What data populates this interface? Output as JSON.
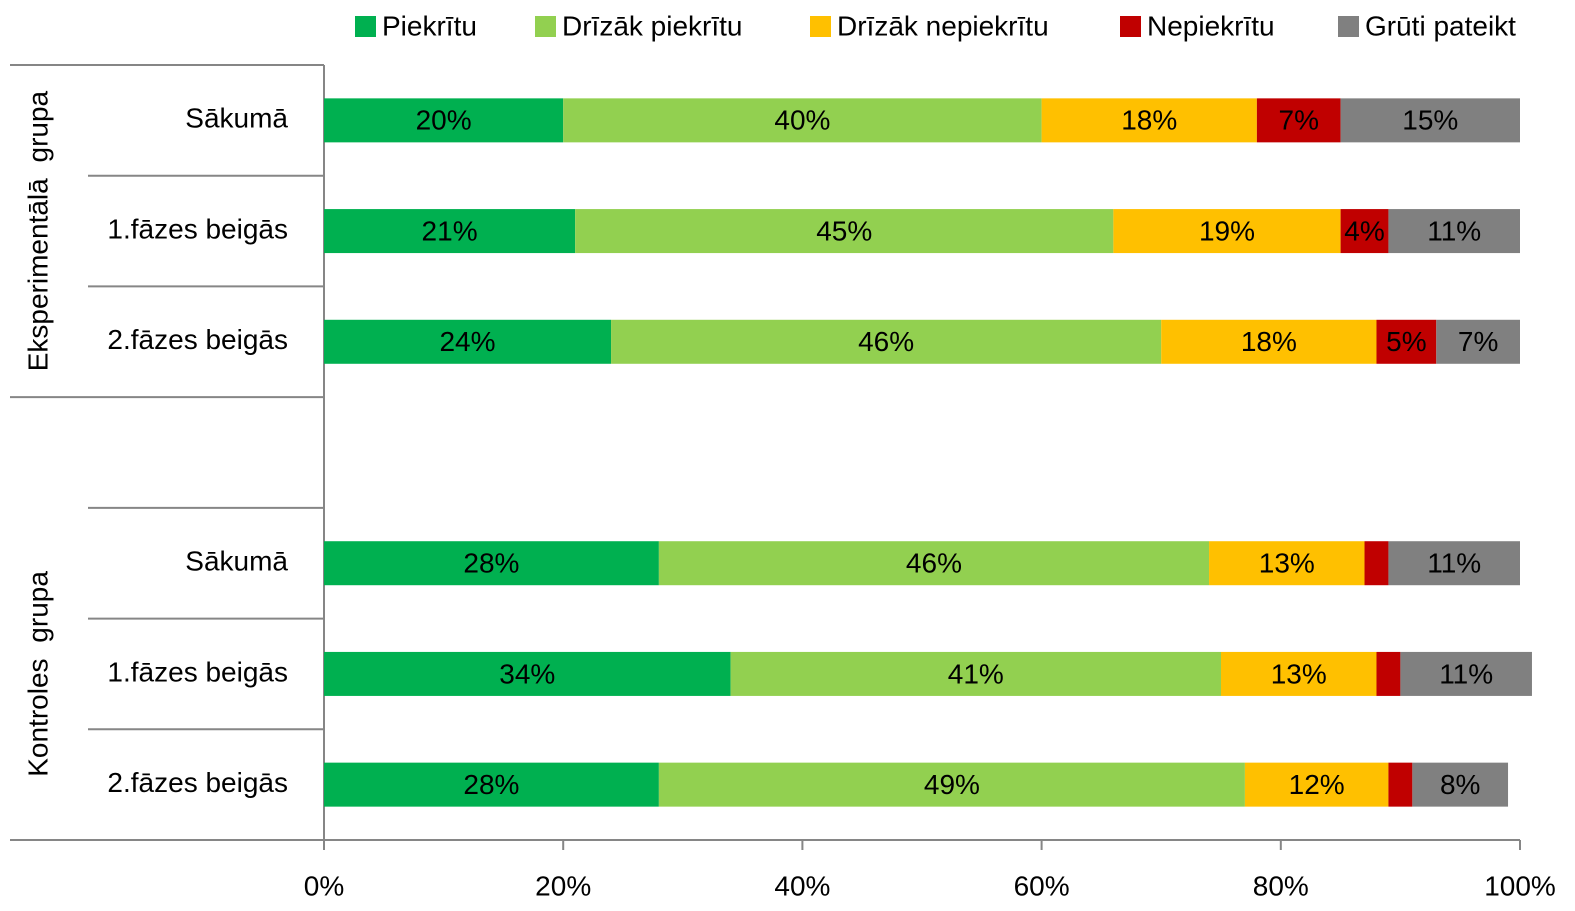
{
  "chart_data": {
    "type": "bar",
    "orientation": "horizontal",
    "stacked": true,
    "group_labels": [
      "Eksperimentālā grupa",
      "Kontroles grupa"
    ],
    "categories": [
      "Sākumā",
      "1.fāzes beigās",
      "2.fāzes beigās",
      null,
      "Sākumā",
      "1.fāzes beigās",
      "2.fāzes beigās"
    ],
    "series": [
      {
        "name": "Piekrītu",
        "color": "#00b050",
        "label_color": "#ffffff",
        "values": [
          20,
          21,
          24,
          null,
          28,
          34,
          28
        ],
        "value_labels": [
          "20%",
          "21%",
          "24%",
          null,
          "28%",
          "34%",
          "28%"
        ]
      },
      {
        "name": "Drīzāk piekrītu",
        "color": "#92d050",
        "label_color": "#000000",
        "values": [
          40,
          45,
          46,
          null,
          46,
          41,
          49
        ],
        "value_labels": [
          "40%",
          "45%",
          "46%",
          null,
          "46%",
          "41%",
          "49%"
        ]
      },
      {
        "name": "Drīzāk nepiekrītu",
        "color": "#ffc000",
        "label_color": "#000000",
        "values": [
          18,
          19,
          18,
          null,
          13,
          13,
          12
        ],
        "value_labels": [
          "18%",
          "19%",
          "18%",
          null,
          "13%",
          "13%",
          "12%"
        ]
      },
      {
        "name": "Nepiekrītu",
        "color": "#c00000",
        "label_color": "#ffffff",
        "values": [
          7,
          4,
          5,
          null,
          2,
          2,
          2
        ],
        "value_labels": [
          "7%",
          "4%",
          "5%",
          null,
          null,
          null,
          null
        ]
      },
      {
        "name": "Grūti pateikt",
        "color": "#808080",
        "label_color": "#ffffff",
        "values": [
          15,
          11,
          7,
          null,
          11,
          11,
          8
        ],
        "value_labels": [
          "15%",
          "11%",
          "7%",
          null,
          "11%",
          "11%",
          "8%"
        ]
      }
    ],
    "xlim": [
      0,
      100
    ],
    "xticks": [
      {
        "value": 0,
        "label": "0%"
      },
      {
        "value": 20,
        "label": "20%"
      },
      {
        "value": 40,
        "label": "40%"
      },
      {
        "value": 60,
        "label": "60%"
      },
      {
        "value": 80,
        "label": "80%"
      },
      {
        "value": 100,
        "label": "100%"
      }
    ],
    "legend": "top"
  }
}
